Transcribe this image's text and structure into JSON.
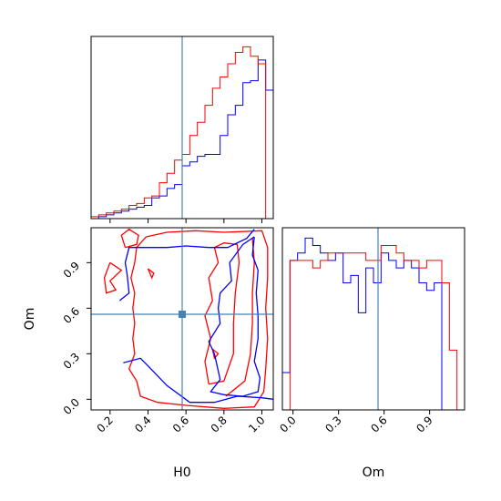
{
  "chart_data": {
    "type": "corner",
    "parameters": [
      "H0",
      "Om"
    ],
    "axis_labels": {
      "x_left": "H0",
      "x_right": "Om",
      "y_left": "Om"
    },
    "truth": {
      "H0": 0.58,
      "Om": 0.56
    },
    "colors": {
      "series_a": "#0000ff",
      "series_b": "#ff0000",
      "truth": "#4682b4"
    },
    "ranges": {
      "H0": [
        0.1,
        1.06
      ],
      "Om": [
        -0.07,
        1.13
      ]
    },
    "ticks": {
      "H0": [
        "0.2",
        "0.4",
        "0.6",
        "0.8",
        "1.0"
      ],
      "Om": [
        "0.0",
        "0.3",
        "0.6",
        "0.9"
      ]
    },
    "hist_H0": {
      "edges": [
        0.1,
        0.14,
        0.18,
        0.22,
        0.26,
        0.3,
        0.34,
        0.38,
        0.42,
        0.46,
        0.5,
        0.54,
        0.58,
        0.62,
        0.66,
        0.7,
        0.74,
        0.78,
        0.82,
        0.86,
        0.9,
        0.94,
        0.98,
        1.02,
        1.06
      ],
      "series": [
        {
          "name": "",
          "color": "#0000ff",
          "values": [
            0,
            1,
            2,
            3,
            4,
            5,
            6,
            7,
            11,
            12,
            16,
            18,
            28,
            30,
            33,
            34,
            34,
            44,
            55,
            60,
            72,
            73,
            84,
            68,
            18
          ]
        },
        {
          "name": "",
          "color": "#ff0000",
          "values": [
            1,
            2,
            3,
            4,
            5,
            7,
            8,
            11,
            12,
            19,
            24,
            31,
            34,
            44,
            51,
            60,
            69,
            75,
            82,
            88,
            91,
            86,
            82,
            0,
            0
          ]
        }
      ]
    },
    "hist_Om": {
      "edges": [
        -0.07,
        -0.02,
        0.03,
        0.08,
        0.13,
        0.18,
        0.23,
        0.28,
        0.33,
        0.38,
        0.43,
        0.48,
        0.53,
        0.58,
        0.63,
        0.68,
        0.73,
        0.78,
        0.83,
        0.88,
        0.93,
        0.98,
        1.03,
        1.08,
        1.13
      ],
      "series": [
        {
          "name": "",
          "color": "#0000ff",
          "values": [
            5,
            20,
            21,
            23,
            22,
            21,
            20,
            21,
            17,
            18,
            13,
            19,
            17,
            21,
            20,
            19,
            20,
            19,
            17,
            16,
            17,
            0,
            0,
            0,
            0
          ]
        },
        {
          "name": "",
          "color": "#ff0000",
          "values": [
            0,
            20,
            20,
            20,
            19,
            20,
            21,
            21,
            21,
            21,
            21,
            20,
            20,
            22,
            22,
            21,
            20,
            20,
            19,
            20,
            20,
            17,
            8,
            0,
            0
          ]
        }
      ]
    },
    "contours": {
      "series_a": [
        [
          [
            0.27,
            0.24
          ],
          [
            0.36,
            0.27
          ],
          [
            0.4,
            0.22
          ],
          [
            0.5,
            0.09
          ],
          [
            0.62,
            -0.02
          ],
          [
            0.75,
            -0.02
          ],
          [
            0.87,
            0.02
          ],
          [
            1.0,
            0.01
          ],
          [
            1.06,
            0.0
          ]
        ],
        [
          [
            0.96,
            1.07
          ],
          [
            0.95,
            0.95
          ],
          [
            0.98,
            0.85
          ],
          [
            0.97,
            0.7
          ],
          [
            0.98,
            0.55
          ],
          [
            0.98,
            0.4
          ],
          [
            0.96,
            0.25
          ],
          [
            0.99,
            0.14
          ],
          [
            0.98,
            0.05
          ],
          [
            0.9,
            0.02
          ],
          [
            0.8,
            0.03
          ],
          [
            0.73,
            0.05
          ],
          [
            0.78,
            0.13
          ],
          [
            0.75,
            0.3
          ],
          [
            0.72,
            0.38
          ],
          [
            0.78,
            0.5
          ],
          [
            0.77,
            0.6
          ],
          [
            0.78,
            0.7
          ],
          [
            0.84,
            0.78
          ],
          [
            0.83,
            0.9
          ],
          [
            0.9,
            1.02
          ],
          [
            0.96,
            1.07
          ]
        ],
        [
          [
            0.25,
            0.65
          ],
          [
            0.3,
            0.7
          ],
          [
            0.29,
            0.82
          ],
          [
            0.28,
            0.9
          ],
          [
            0.3,
            1.0
          ],
          [
            0.4,
            1.0
          ],
          [
            0.5,
            1.0
          ],
          [
            0.6,
            1.01
          ],
          [
            0.72,
            1.0
          ],
          [
            0.82,
            1.0
          ],
          [
            0.92,
            1.06
          ],
          [
            0.96,
            1.12
          ]
        ]
      ],
      "series_b": [
        [
          [
            0.28,
            1.0
          ],
          [
            0.34,
            1.02
          ],
          [
            0.35,
            1.08
          ],
          [
            0.3,
            1.12
          ],
          [
            0.26,
            1.08
          ],
          [
            0.28,
            1.0
          ]
        ],
        [
          [
            0.39,
            1.07
          ],
          [
            0.5,
            1.1
          ],
          [
            0.65,
            1.11
          ],
          [
            0.8,
            1.1
          ],
          [
            1.0,
            1.11
          ],
          [
            1.03,
            1.0
          ],
          [
            1.03,
            0.8
          ],
          [
            1.02,
            0.6
          ],
          [
            1.03,
            0.4
          ],
          [
            1.02,
            0.2
          ],
          [
            1.01,
            0.05
          ],
          [
            0.96,
            -0.05
          ],
          [
            0.8,
            -0.06
          ],
          [
            0.6,
            -0.04
          ],
          [
            0.45,
            -0.02
          ],
          [
            0.36,
            0.02
          ],
          [
            0.34,
            0.12
          ],
          [
            0.3,
            0.2
          ],
          [
            0.33,
            0.3
          ],
          [
            0.32,
            0.4
          ],
          [
            0.33,
            0.5
          ],
          [
            0.32,
            0.6
          ],
          [
            0.33,
            0.7
          ],
          [
            0.31,
            0.8
          ],
          [
            0.33,
            0.9
          ],
          [
            0.34,
            1.0
          ],
          [
            0.39,
            1.07
          ]
        ],
        [
          [
            0.72,
            0.1
          ],
          [
            0.8,
            0.12
          ],
          [
            0.85,
            0.3
          ],
          [
            0.85,
            0.5
          ],
          [
            0.86,
            0.7
          ],
          [
            0.88,
            0.9
          ],
          [
            0.87,
            1.02
          ],
          [
            0.8,
            1.03
          ],
          [
            0.75,
            1.0
          ],
          [
            0.77,
            0.9
          ],
          [
            0.72,
            0.8
          ],
          [
            0.74,
            0.65
          ],
          [
            0.7,
            0.55
          ],
          [
            0.73,
            0.4
          ],
          [
            0.7,
            0.25
          ],
          [
            0.72,
            0.1
          ]
        ],
        [
          [
            0.81,
            0.02
          ],
          [
            0.91,
            0.12
          ],
          [
            0.94,
            0.3
          ],
          [
            0.95,
            0.5
          ],
          [
            0.95,
            0.7
          ],
          [
            0.96,
            0.9
          ],
          [
            0.95,
            1.06
          ]
        ],
        [
          [
            0.2,
            0.9
          ],
          [
            0.26,
            0.85
          ],
          [
            0.2,
            0.78
          ],
          [
            0.23,
            0.72
          ],
          [
            0.18,
            0.7
          ],
          [
            0.17,
            0.8
          ],
          [
            0.2,
            0.9
          ]
        ],
        [
          [
            0.4,
            0.86
          ],
          [
            0.43,
            0.83
          ],
          [
            0.42,
            0.8
          ],
          [
            0.4,
            0.86
          ]
        ],
        [
          [
            0.74,
            0.33
          ],
          [
            0.77,
            0.3
          ],
          [
            0.75,
            0.27
          ],
          [
            0.74,
            0.33
          ]
        ]
      ]
    }
  }
}
